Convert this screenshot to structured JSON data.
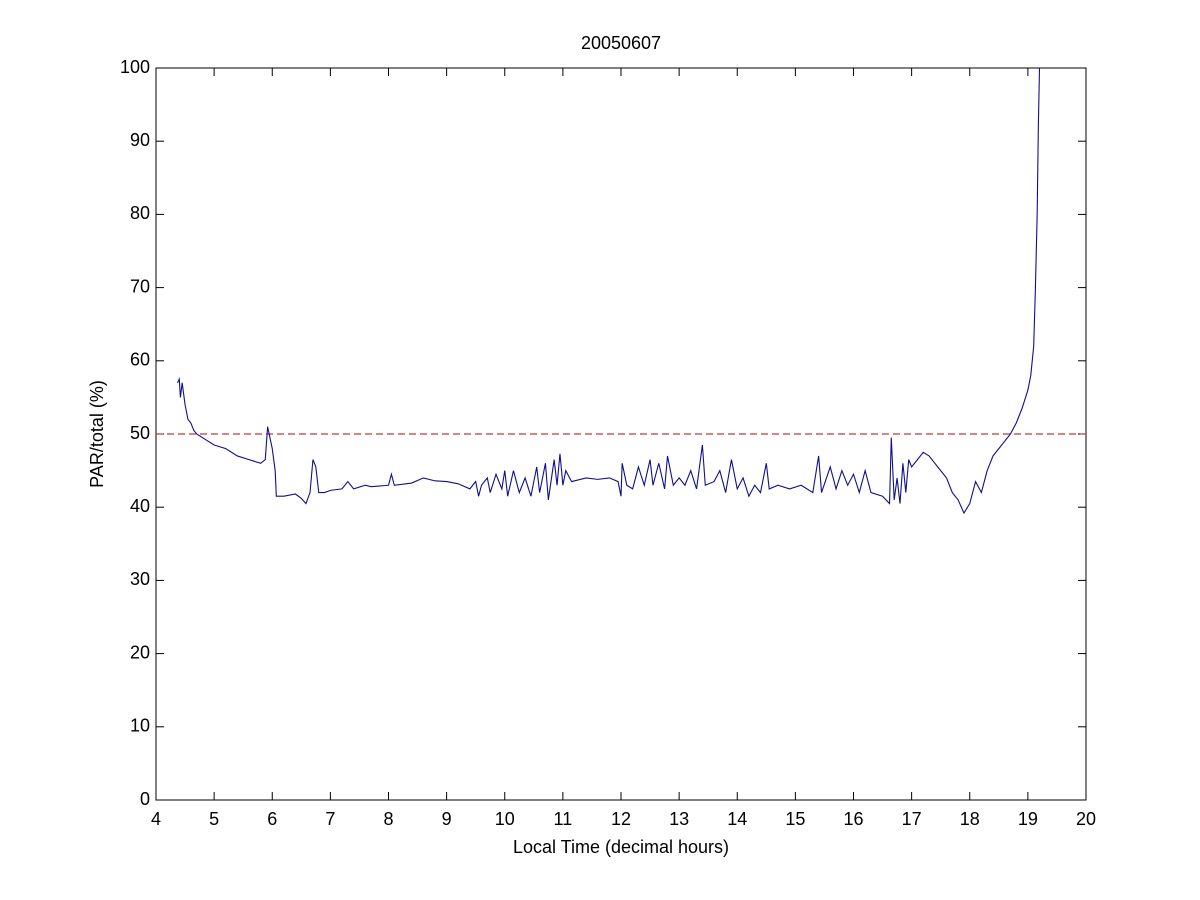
{
  "chart_data": {
    "type": "line",
    "title": "20050607",
    "x_label": "Local Time (decimal hours)",
    "y_label": "PAR/total (%)",
    "xlim": [
      4,
      20
    ],
    "ylim": [
      0,
      100
    ],
    "xticks": [
      4,
      5,
      6,
      7,
      8,
      9,
      10,
      11,
      12,
      13,
      14,
      15,
      16,
      17,
      18,
      19,
      20
    ],
    "yticks": [
      0,
      10,
      20,
      30,
      40,
      50,
      60,
      70,
      80,
      90,
      100
    ],
    "grid": false,
    "reference_lines": [
      {
        "value": 50,
        "color": "#c03a3a",
        "style": "dashed"
      }
    ],
    "x": [
      4.37,
      4.4,
      4.42,
      4.45,
      4.5,
      4.55,
      4.6,
      4.65,
      4.7,
      4.8,
      4.9,
      5.0,
      5.2,
      5.4,
      5.6,
      5.8,
      5.88,
      5.92,
      5.96,
      6.0,
      6.05,
      6.07,
      6.2,
      6.4,
      6.5,
      6.58,
      6.65,
      6.7,
      6.75,
      6.8,
      6.9,
      7.0,
      7.2,
      7.3,
      7.4,
      7.6,
      7.7,
      8.0,
      8.05,
      8.1,
      8.4,
      8.6,
      8.8,
      9.0,
      9.2,
      9.4,
      9.5,
      9.55,
      9.6,
      9.7,
      9.75,
      9.85,
      9.95,
      10.0,
      10.05,
      10.15,
      10.25,
      10.35,
      10.45,
      10.55,
      10.6,
      10.7,
      10.75,
      10.85,
      10.9,
      10.95,
      11.0,
      11.05,
      11.15,
      11.4,
      11.6,
      11.8,
      11.95,
      12.0,
      12.02,
      12.1,
      12.2,
      12.3,
      12.4,
      12.5,
      12.55,
      12.65,
      12.75,
      12.8,
      12.9,
      13.0,
      13.1,
      13.2,
      13.3,
      13.4,
      13.45,
      13.6,
      13.7,
      13.8,
      13.9,
      14.0,
      14.1,
      14.2,
      14.3,
      14.4,
      14.5,
      14.55,
      14.7,
      14.9,
      15.1,
      15.3,
      15.4,
      15.45,
      15.6,
      15.7,
      15.8,
      15.9,
      16.0,
      16.1,
      16.2,
      16.3,
      16.5,
      16.62,
      16.65,
      16.7,
      16.75,
      16.8,
      16.85,
      16.9,
      16.95,
      17.0,
      17.1,
      17.2,
      17.3,
      17.4,
      17.5,
      17.6,
      17.7,
      17.8,
      17.9,
      18.0,
      18.1,
      18.2,
      18.3,
      18.4,
      18.5,
      18.6,
      18.7,
      18.8,
      18.9,
      19.0,
      19.05,
      19.1,
      19.13,
      19.16,
      19.18,
      19.2
    ],
    "series": [
      {
        "color": "#10108c",
        "values": [
          57,
          57.5,
          55,
          57,
          54,
          52,
          51.5,
          50.5,
          50,
          49.5,
          49,
          48.5,
          48,
          47,
          46.5,
          46,
          46.5,
          51,
          49.5,
          48,
          45,
          41.5,
          41.5,
          41.8,
          41.2,
          40.5,
          42,
          46.5,
          45.5,
          42,
          42,
          42.3,
          42.5,
          43.5,
          42.5,
          43,
          42.8,
          43,
          44.5,
          43,
          43.3,
          44,
          43.6,
          43.5,
          43.2,
          42.5,
          43.5,
          41.5,
          43,
          44,
          42,
          44.5,
          42.5,
          45,
          41.5,
          45,
          42,
          44,
          41.5,
          45.5,
          42,
          46,
          41,
          46.5,
          43,
          47.3,
          43,
          45,
          43.5,
          44,
          43.8,
          44,
          43.5,
          41.5,
          46,
          43,
          42.5,
          45.5,
          43,
          46.5,
          43,
          46,
          42.5,
          47,
          43,
          44,
          43,
          45,
          42.5,
          48.5,
          43,
          43.5,
          45,
          42,
          46.5,
          42.5,
          44,
          41.5,
          43,
          42,
          46,
          42.5,
          43,
          42.5,
          43,
          42,
          47,
          42,
          45.5,
          42.5,
          45,
          43,
          44.5,
          42,
          45,
          42,
          41.5,
          40.5,
          49.5,
          41,
          44,
          40.5,
          46,
          42,
          46.5,
          45.5,
          46.5,
          47.5,
          47,
          46,
          45,
          44,
          42,
          41,
          39.2,
          40.5,
          43.5,
          42,
          45,
          47,
          48,
          49,
          50,
          51.5,
          53.5,
          56,
          58,
          62,
          70,
          80,
          92,
          100
        ]
      }
    ]
  }
}
